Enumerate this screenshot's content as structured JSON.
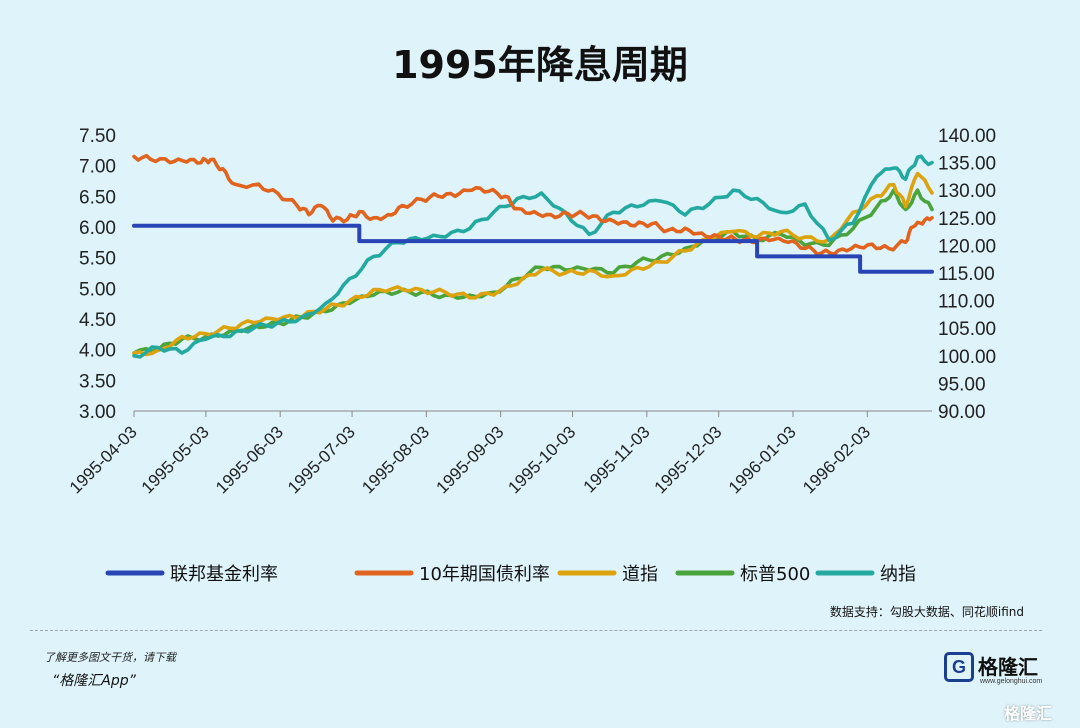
{
  "page": {
    "title": "1995年降息周期",
    "source_note": "数据支持：勾股大数据、同花顺ifind",
    "promo_line1": "了解更多图文干货，请下载",
    "promo_line2": "“格隆汇App”",
    "brand_mark": "G",
    "brand_name": "格隆汇",
    "brand_url": "www.gelonghui.com",
    "corner_brand": "格隆汇"
  },
  "chart_data": {
    "type": "line",
    "title": "1995年降息周期",
    "x_dates": [
      "1995-04-03",
      "1995-05-03",
      "1995-06-03",
      "1995-07-03",
      "1995-08-03",
      "1995-09-03",
      "1995-10-03",
      "1995-11-03",
      "1995-12-03",
      "1996-01-03",
      "1996-02-03"
    ],
    "x_range": [
      "1995-04-03",
      "1996-03-01"
    ],
    "y_left": {
      "range": [
        3.0,
        7.5
      ],
      "ticks": [
        "3.00",
        "3.50",
        "4.00",
        "4.50",
        "5.00",
        "5.50",
        "6.00",
        "6.50",
        "7.00",
        "7.50"
      ]
    },
    "y_right": {
      "range": [
        90,
        140
      ],
      "ticks": [
        "90.00",
        "95.00",
        "100.00",
        "105.00",
        "110.00",
        "115.00",
        "120.00",
        "125.00",
        "130.00",
        "135.00",
        "140.00"
      ]
    },
    "grid": false,
    "legend_position": "bottom",
    "series": [
      {
        "name": "联邦基金利率",
        "axis": "left",
        "color": "#2945b5",
        "step": true,
        "points": [
          [
            "1995-04-03",
            6.02
          ],
          [
            "1995-07-06",
            6.02
          ],
          [
            "1995-07-06",
            5.77
          ],
          [
            "1995-12-19",
            5.77
          ],
          [
            "1995-12-19",
            5.52
          ],
          [
            "1996-01-31",
            5.52
          ],
          [
            "1996-01-31",
            5.27
          ],
          [
            "1996-03-01",
            5.27
          ]
        ]
      },
      {
        "name": "10年期国债利率",
        "axis": "left",
        "color": "#e0641e",
        "points": [
          [
            "1995-04-03",
            7.15
          ],
          [
            "1995-04-10",
            7.1
          ],
          [
            "1995-04-18",
            7.05
          ],
          [
            "1995-04-25",
            7.06
          ],
          [
            "1995-05-01",
            7.05
          ],
          [
            "1995-05-05",
            7.1
          ],
          [
            "1995-05-10",
            6.95
          ],
          [
            "1995-05-15",
            6.7
          ],
          [
            "1995-05-25",
            6.7
          ],
          [
            "1995-06-02",
            6.55
          ],
          [
            "1995-06-10",
            6.35
          ],
          [
            "1995-06-15",
            6.2
          ],
          [
            "1995-06-20",
            6.35
          ],
          [
            "1995-06-25",
            6.1
          ],
          [
            "1995-07-01",
            6.12
          ],
          [
            "1995-07-06",
            6.25
          ],
          [
            "1995-07-12",
            6.15
          ],
          [
            "1995-07-18",
            6.2
          ],
          [
            "1995-07-24",
            6.35
          ],
          [
            "1995-08-01",
            6.45
          ],
          [
            "1995-08-08",
            6.5
          ],
          [
            "1995-08-15",
            6.5
          ],
          [
            "1995-08-22",
            6.6
          ],
          [
            "1995-08-29",
            6.58
          ],
          [
            "1995-09-05",
            6.5
          ],
          [
            "1995-09-10",
            6.3
          ],
          [
            "1995-09-17",
            6.25
          ],
          [
            "1995-09-24",
            6.2
          ],
          [
            "1995-10-01",
            6.22
          ],
          [
            "1995-10-08",
            6.2
          ],
          [
            "1995-10-15",
            6.1
          ],
          [
            "1995-10-22",
            6.05
          ],
          [
            "1995-10-29",
            6.02
          ],
          [
            "1995-11-05",
            6.05
          ],
          [
            "1995-11-12",
            5.95
          ],
          [
            "1995-11-19",
            5.98
          ],
          [
            "1995-11-26",
            5.9
          ],
          [
            "1995-12-03",
            5.85
          ],
          [
            "1995-12-10",
            5.8
          ],
          [
            "1995-12-17",
            5.75
          ],
          [
            "1995-12-24",
            5.78
          ],
          [
            "1996-01-01",
            5.75
          ],
          [
            "1996-01-08",
            5.65
          ],
          [
            "1996-01-15",
            5.58
          ],
          [
            "1996-01-22",
            5.62
          ],
          [
            "1996-01-29",
            5.7
          ],
          [
            "1996-02-05",
            5.72
          ],
          [
            "1996-02-12",
            5.65
          ],
          [
            "1996-02-19",
            5.75
          ],
          [
            "1996-02-22",
            6.0
          ],
          [
            "1996-02-26",
            6.05
          ],
          [
            "1996-03-01",
            6.15
          ]
        ]
      },
      {
        "name": "道指",
        "axis": "right",
        "color": "#dca30e",
        "points": [
          [
            "1995-04-03",
            100.5
          ],
          [
            "1995-04-13",
            101
          ],
          [
            "1995-04-23",
            103.5
          ],
          [
            "1995-05-03",
            104
          ],
          [
            "1995-05-13",
            105
          ],
          [
            "1995-05-23",
            106
          ],
          [
            "1995-06-02",
            106.5
          ],
          [
            "1995-06-12",
            107
          ],
          [
            "1995-06-22",
            108.5
          ],
          [
            "1995-07-02",
            110
          ],
          [
            "1995-07-12",
            112
          ],
          [
            "1995-07-22",
            112.5
          ],
          [
            "1995-08-01",
            112
          ],
          [
            "1995-08-11",
            111.5
          ],
          [
            "1995-08-21",
            110.5
          ],
          [
            "1995-08-31",
            111
          ],
          [
            "1995-09-10",
            113
          ],
          [
            "1995-09-20",
            115.5
          ],
          [
            "1995-09-30",
            115
          ],
          [
            "1995-10-10",
            115.5
          ],
          [
            "1995-10-20",
            114.5
          ],
          [
            "1995-10-30",
            116
          ],
          [
            "1995-11-09",
            117
          ],
          [
            "1995-11-19",
            119
          ],
          [
            "1995-11-29",
            121
          ],
          [
            "1995-12-09",
            122.5
          ],
          [
            "1995-12-19",
            121.5
          ],
          [
            "1995-12-29",
            122.5
          ],
          [
            "1996-01-08",
            121.5
          ],
          [
            "1996-01-18",
            121
          ],
          [
            "1996-01-28",
            126
          ],
          [
            "1996-02-07",
            129
          ],
          [
            "1996-02-14",
            131
          ],
          [
            "1996-02-19",
            127
          ],
          [
            "1996-02-24",
            133
          ],
          [
            "1996-03-01",
            129.5
          ]
        ]
      },
      {
        "name": "标普500",
        "axis": "right",
        "color": "#4aa33b",
        "points": [
          [
            "1995-04-03",
            100.5
          ],
          [
            "1995-04-13",
            101
          ],
          [
            "1995-04-23",
            103
          ],
          [
            "1995-05-03",
            103.5
          ],
          [
            "1995-05-13",
            104.5
          ],
          [
            "1995-05-23",
            105.5
          ],
          [
            "1995-06-02",
            106
          ],
          [
            "1995-06-12",
            107
          ],
          [
            "1995-06-22",
            108
          ],
          [
            "1995-07-02",
            109.5
          ],
          [
            "1995-07-12",
            111
          ],
          [
            "1995-07-22",
            111.5
          ],
          [
            "1995-08-01",
            111.5
          ],
          [
            "1995-08-11",
            111
          ],
          [
            "1995-08-21",
            111
          ],
          [
            "1995-08-31",
            111.5
          ],
          [
            "1995-09-10",
            114
          ],
          [
            "1995-09-20",
            116
          ],
          [
            "1995-09-30",
            115.5
          ],
          [
            "1995-10-10",
            115.5
          ],
          [
            "1995-10-20",
            115
          ],
          [
            "1995-10-30",
            117
          ],
          [
            "1995-11-09",
            118
          ],
          [
            "1995-11-19",
            119.5
          ],
          [
            "1995-11-29",
            121.5
          ],
          [
            "1995-12-09",
            122.5
          ],
          [
            "1995-12-19",
            121
          ],
          [
            "1995-12-29",
            122
          ],
          [
            "1996-01-08",
            120
          ],
          [
            "1996-01-18",
            120
          ],
          [
            "1996-01-28",
            123
          ],
          [
            "1996-02-07",
            127
          ],
          [
            "1996-02-14",
            130
          ],
          [
            "1996-02-19",
            126.5
          ],
          [
            "1996-02-24",
            130
          ],
          [
            "1996-03-01",
            126.5
          ]
        ]
      },
      {
        "name": "纳指",
        "axis": "right",
        "color": "#24a9a1",
        "points": [
          [
            "1995-04-03",
            100
          ],
          [
            "1995-04-13",
            101.5
          ],
          [
            "1995-04-23",
            100.5
          ],
          [
            "1995-05-03",
            103
          ],
          [
            "1995-05-13",
            103.5
          ],
          [
            "1995-05-23",
            105
          ],
          [
            "1995-06-02",
            106
          ],
          [
            "1995-06-12",
            107
          ],
          [
            "1995-06-22",
            109.5
          ],
          [
            "1995-07-02",
            114
          ],
          [
            "1995-07-12",
            118
          ],
          [
            "1995-07-22",
            120.5
          ],
          [
            "1995-08-01",
            121
          ],
          [
            "1995-08-11",
            121.5
          ],
          [
            "1995-08-21",
            123
          ],
          [
            "1995-08-31",
            126
          ],
          [
            "1995-09-10",
            128.5
          ],
          [
            "1995-09-20",
            129.5
          ],
          [
            "1995-09-30",
            126
          ],
          [
            "1995-10-10",
            122
          ],
          [
            "1995-10-20",
            126
          ],
          [
            "1995-10-30",
            127
          ],
          [
            "1995-11-09",
            128
          ],
          [
            "1995-11-19",
            125.5
          ],
          [
            "1995-11-29",
            127.5
          ],
          [
            "1995-12-09",
            130
          ],
          [
            "1995-12-19",
            128.5
          ],
          [
            "1995-12-29",
            126
          ],
          [
            "1996-01-08",
            127.5
          ],
          [
            "1996-01-18",
            121
          ],
          [
            "1996-01-28",
            124
          ],
          [
            "1996-02-07",
            132.5
          ],
          [
            "1996-02-14",
            134
          ],
          [
            "1996-02-19",
            132
          ],
          [
            "1996-02-24",
            136
          ],
          [
            "1996-03-01",
            135
          ]
        ]
      }
    ]
  }
}
